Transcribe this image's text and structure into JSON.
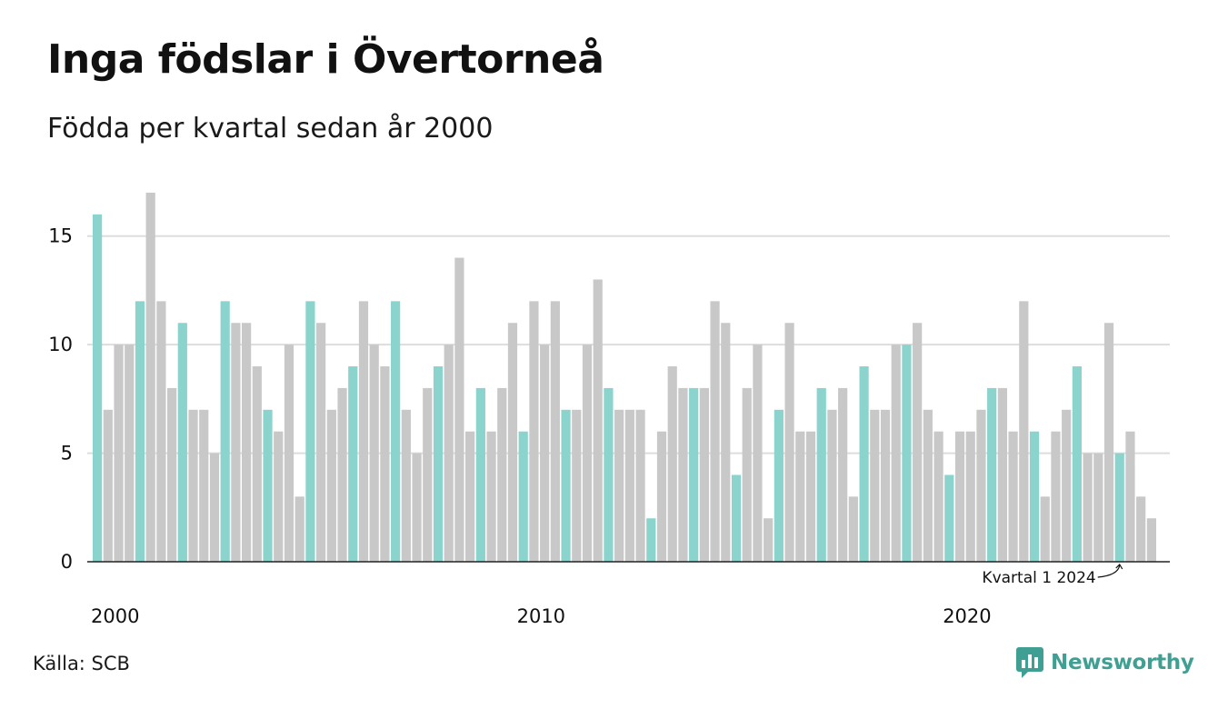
{
  "title": "Inga födslar i Övertorneå",
  "subtitle": "Födda per kvartal sedan år 2000",
  "source": "Källa: SCB",
  "logo_text": "Newsworthy",
  "colors": {
    "highlight": "#8ad4cd",
    "default": "#c8c8c8",
    "grid": "#dddddd",
    "axis": "#222222",
    "logo": "#3f9f92"
  },
  "chart_data": {
    "type": "bar",
    "start_year": 2000,
    "x_tick_labels": [
      "2000",
      "2010",
      "2020"
    ],
    "y_ticks": [
      0,
      5,
      10,
      15
    ],
    "ylim": [
      0,
      17.5
    ],
    "grid": true,
    "highlight_quarter": 1,
    "values": [
      16,
      7,
      10,
      10,
      12,
      17,
      12,
      8,
      11,
      7,
      7,
      5,
      12,
      11,
      11,
      9,
      7,
      6,
      10,
      3,
      12,
      11,
      7,
      8,
      9,
      12,
      10,
      9,
      12,
      7,
      5,
      8,
      9,
      10,
      14,
      6,
      8,
      6,
      8,
      11,
      6,
      12,
      10,
      12,
      7,
      7,
      10,
      13,
      8,
      7,
      7,
      7,
      2,
      6,
      9,
      8,
      8,
      8,
      12,
      11,
      4,
      8,
      10,
      2,
      7,
      11,
      6,
      6,
      8,
      7,
      8,
      3,
      9,
      7,
      7,
      10,
      10,
      11,
      7,
      6,
      4,
      6,
      6,
      7,
      8,
      8,
      6,
      12,
      6,
      3,
      6,
      7,
      9,
      5,
      5,
      11,
      5,
      6,
      3,
      2
    ],
    "annotation": "Kvartal 1 2024"
  }
}
